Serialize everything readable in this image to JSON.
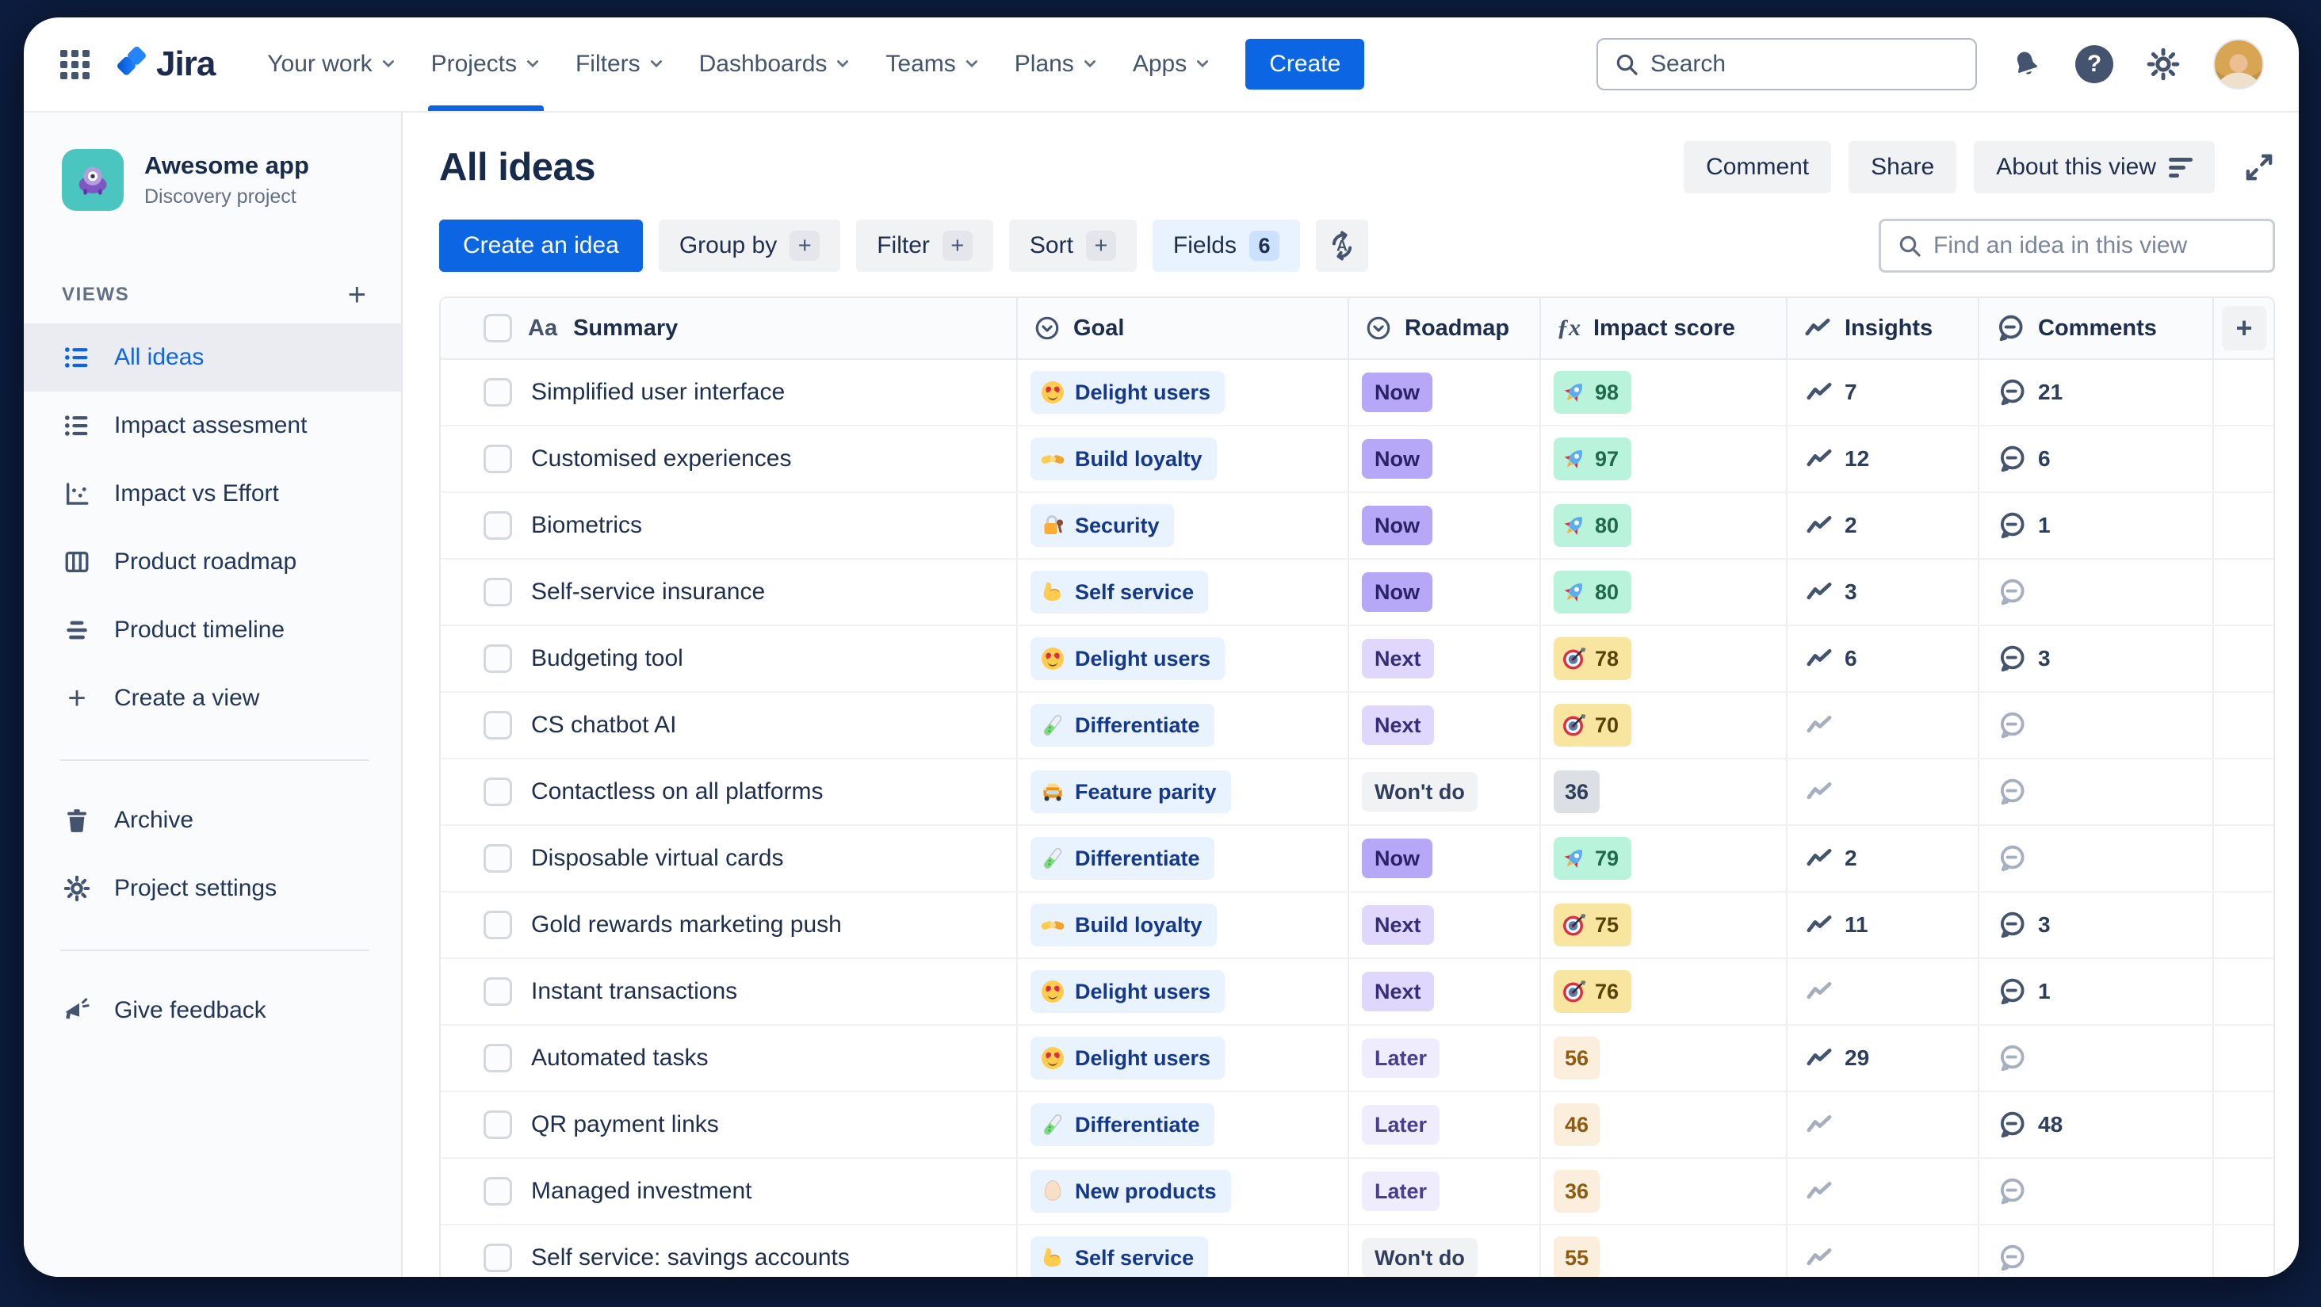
{
  "colors": {
    "accent_blue": "#0C66E4",
    "text_navy": "#172B4D",
    "text_slate": "#44546F",
    "frame_dark": "#0D1D3F",
    "goal_chip_bg": "#E9F2FF",
    "roadmap_now_bg": "#B7A8F7",
    "roadmap_next_bg": "#DFD8FC",
    "roadmap_later_bg": "#EFECFE",
    "roadmap_wontdo_bg": "#F1F2F4",
    "impact_green_bg": "#BAF3DB",
    "impact_yellow_bg": "#F8E6A0",
    "impact_gray_bg": "#DCDFE4",
    "impact_peach_bg": "#FCEEDC"
  },
  "topnav": {
    "logo_text": "Jira",
    "items": [
      "Your work",
      "Projects",
      "Filters",
      "Dashboards",
      "Teams",
      "Plans",
      "Apps"
    ],
    "active_item": "Projects",
    "create_label": "Create",
    "search_placeholder": "Search"
  },
  "sidebar": {
    "project_name": "Awesome app",
    "project_type": "Discovery project",
    "views_label": "VIEWS",
    "views": [
      {
        "label": "All ideas",
        "icon": "list-view-icon",
        "active": true
      },
      {
        "label": "Impact assesment",
        "icon": "list-view-icon",
        "active": false
      },
      {
        "label": "Impact vs Effort",
        "icon": "scatter-chart-icon",
        "active": false
      },
      {
        "label": "Product roadmap",
        "icon": "board-columns-icon",
        "active": false
      },
      {
        "label": "Product timeline",
        "icon": "timeline-icon",
        "active": false
      }
    ],
    "create_view_label": "Create a view",
    "archive_label": "Archive",
    "settings_label": "Project settings",
    "feedback_label": "Give feedback"
  },
  "view_header": {
    "title": "All ideas",
    "comment_label": "Comment",
    "share_label": "Share",
    "about_label": "About this view"
  },
  "toolbar": {
    "create_idea_label": "Create an idea",
    "group_by_label": "Group by",
    "filter_label": "Filter",
    "sort_label": "Sort",
    "fields_label": "Fields",
    "fields_count": "6",
    "find_placeholder": "Find an idea in this view"
  },
  "table": {
    "columns": [
      {
        "label": "Summary",
        "icon": "text-field-icon"
      },
      {
        "label": "Goal",
        "icon": "select-field-icon"
      },
      {
        "label": "Roadmap",
        "icon": "select-field-icon"
      },
      {
        "label": "Impact score",
        "icon": "formula-field-icon"
      },
      {
        "label": "Insights",
        "icon": "trend-icon"
      },
      {
        "label": "Comments",
        "icon": "comment-icon"
      }
    ],
    "rows": [
      {
        "summary": "Simplified user interface",
        "goal": {
          "label": "Delight users",
          "emoji": "heart-eyes"
        },
        "roadmap": {
          "label": "Now",
          "tone": "now"
        },
        "impact": {
          "value": "98",
          "tone": "green",
          "emoji": "rocket"
        },
        "insights": "7",
        "comments": "21"
      },
      {
        "summary": "Customised experiences",
        "goal": {
          "label": "Build loyalty",
          "emoji": "handshake"
        },
        "roadmap": {
          "label": "Now",
          "tone": "now"
        },
        "impact": {
          "value": "97",
          "tone": "green",
          "emoji": "rocket"
        },
        "insights": "12",
        "comments": "6"
      },
      {
        "summary": "Biometrics",
        "goal": {
          "label": "Security",
          "emoji": "lock"
        },
        "roadmap": {
          "label": "Now",
          "tone": "now"
        },
        "impact": {
          "value": "80",
          "tone": "green",
          "emoji": "rocket"
        },
        "insights": "2",
        "comments": "1"
      },
      {
        "summary": "Self-service insurance",
        "goal": {
          "label": "Self service",
          "emoji": "biceps"
        },
        "roadmap": {
          "label": "Now",
          "tone": "now"
        },
        "impact": {
          "value": "80",
          "tone": "green",
          "emoji": "rocket"
        },
        "insights": "3",
        "comments": null
      },
      {
        "summary": "Budgeting tool",
        "goal": {
          "label": "Delight users",
          "emoji": "heart-eyes"
        },
        "roadmap": {
          "label": "Next",
          "tone": "next"
        },
        "impact": {
          "value": "78",
          "tone": "yellow",
          "emoji": "target"
        },
        "insights": "6",
        "comments": "3"
      },
      {
        "summary": "CS chatbot AI",
        "goal": {
          "label": "Differentiate",
          "emoji": "test-tube"
        },
        "roadmap": {
          "label": "Next",
          "tone": "next"
        },
        "impact": {
          "value": "70",
          "tone": "yellow",
          "emoji": "target"
        },
        "insights": null,
        "comments": null
      },
      {
        "summary": "Contactless on all platforms",
        "goal": {
          "label": "Feature parity",
          "emoji": "car"
        },
        "roadmap": {
          "label": "Won't do",
          "tone": "wontdo"
        },
        "impact": {
          "value": "36",
          "tone": "graychip",
          "emoji": null
        },
        "insights": null,
        "comments": null
      },
      {
        "summary": "Disposable virtual cards",
        "goal": {
          "label": "Differentiate",
          "emoji": "test-tube"
        },
        "roadmap": {
          "label": "Now",
          "tone": "now"
        },
        "impact": {
          "value": "79",
          "tone": "green",
          "emoji": "rocket"
        },
        "insights": "2",
        "comments": null
      },
      {
        "summary": "Gold rewards marketing push",
        "goal": {
          "label": "Build loyalty",
          "emoji": "handshake"
        },
        "roadmap": {
          "label": "Next",
          "tone": "next"
        },
        "impact": {
          "value": "75",
          "tone": "yellow",
          "emoji": "target"
        },
        "insights": "11",
        "comments": "3"
      },
      {
        "summary": "Instant transactions",
        "goal": {
          "label": "Delight users",
          "emoji": "heart-eyes"
        },
        "roadmap": {
          "label": "Next",
          "tone": "next"
        },
        "impact": {
          "value": "76",
          "tone": "yellow",
          "emoji": "target"
        },
        "insights": null,
        "comments": "1"
      },
      {
        "summary": "Automated tasks",
        "goal": {
          "label": "Delight users",
          "emoji": "heart-eyes"
        },
        "roadmap": {
          "label": "Later",
          "tone": "later"
        },
        "impact": {
          "value": "56",
          "tone": "peach",
          "emoji": null
        },
        "insights": "29",
        "comments": null
      },
      {
        "summary": "QR payment links",
        "goal": {
          "label": "Differentiate",
          "emoji": "test-tube"
        },
        "roadmap": {
          "label": "Later",
          "tone": "later"
        },
        "impact": {
          "value": "46",
          "tone": "peach",
          "emoji": null
        },
        "insights": null,
        "comments": "48"
      },
      {
        "summary": "Managed investment",
        "goal": {
          "label": "New products",
          "emoji": "egg"
        },
        "roadmap": {
          "label": "Later",
          "tone": "later"
        },
        "impact": {
          "value": "36",
          "tone": "peach",
          "emoji": null
        },
        "insights": null,
        "comments": null
      },
      {
        "summary": "Self service: savings accounts",
        "goal": {
          "label": "Self service",
          "emoji": "biceps"
        },
        "roadmap": {
          "label": "Won't do",
          "tone": "wontdo"
        },
        "impact": {
          "value": "55",
          "tone": "peach",
          "emoji": null
        },
        "insights": null,
        "comments": null
      }
    ]
  }
}
